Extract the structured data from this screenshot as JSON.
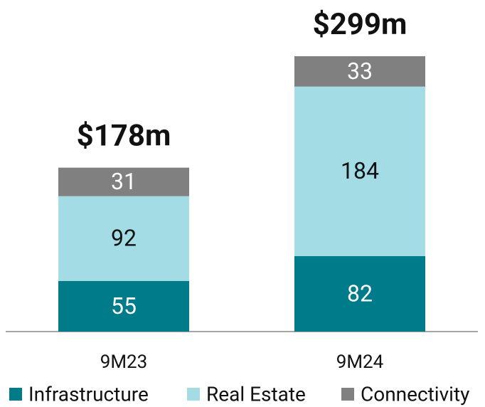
{
  "chart_data": {
    "type": "stacked_bar",
    "categories": [
      "9M23",
      "9M24"
    ],
    "series": [
      {
        "name": "Infrastructure",
        "color": "#007b8a",
        "values": [
          55,
          82
        ]
      },
      {
        "name": "Real Estate",
        "color": "#a4dce6",
        "values": [
          92,
          184
        ]
      },
      {
        "name": "Connectivity",
        "color": "#808080",
        "values": [
          31,
          33
        ]
      }
    ],
    "annotations": [
      "$178m",
      "$299m"
    ],
    "ylim": [
      0,
      350
    ],
    "legend": "bottom"
  }
}
